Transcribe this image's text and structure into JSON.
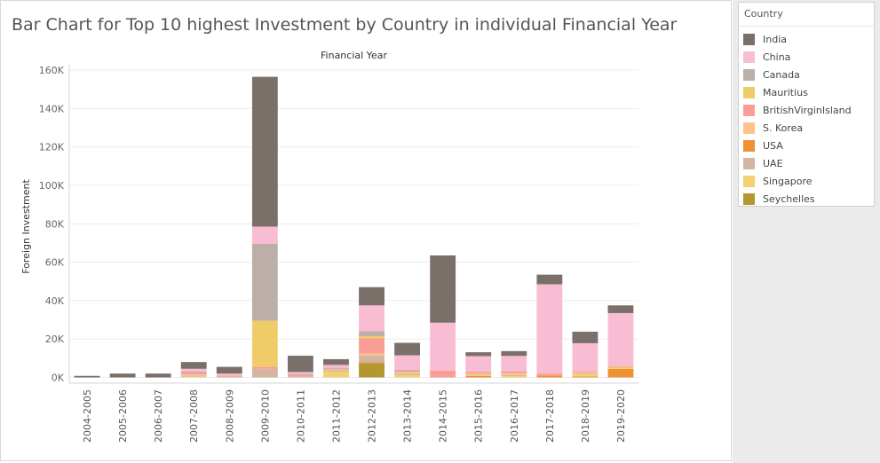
{
  "title": "Bar Chart for Top 10 highest Investment by Country in individual Financial Year",
  "legend": {
    "title": "Country",
    "items": [
      {
        "label": "India",
        "color": "#7b6f6a"
      },
      {
        "label": "China",
        "color": "#f9bdd3"
      },
      {
        "label": "Canada",
        "color": "#bbafa8"
      },
      {
        "label": "Mauritius",
        "color": "#f0cc69"
      },
      {
        "label": "BritishVirginIsland",
        "color": "#fa9e95"
      },
      {
        "label": "S. Korea",
        "color": "#fcc38a"
      },
      {
        "label": "USA",
        "color": "#ef9035"
      },
      {
        "label": "UAE",
        "color": "#d5b4a3"
      },
      {
        "label": "Singapore",
        "color": "#f2d26e"
      },
      {
        "label": "Seychelles",
        "color": "#b39832"
      }
    ]
  },
  "chart_data": {
    "type": "bar",
    "stacked": true,
    "title": "Bar Chart for Top 10 highest Investment by Country in individual Financial Year",
    "top_axis_label": "Financial Year",
    "ylabel": "Foreign Investment",
    "ylim": [
      -3000,
      160000
    ],
    "yticks": [
      0,
      20000,
      40000,
      60000,
      80000,
      100000,
      120000,
      140000,
      160000
    ],
    "ytick_labels": [
      "0K",
      "20K",
      "40K",
      "60K",
      "80K",
      "100K",
      "120K",
      "140K",
      "160K"
    ],
    "categories": [
      "2004-2005",
      "2005-2006",
      "2006-2007",
      "2007-2008",
      "2008-2009",
      "2009-2010",
      "2010-2011",
      "2011-2012",
      "2012-2013",
      "2013-2014",
      "2014-2015",
      "2015-2016",
      "2016-2017",
      "2017-2018",
      "2018-2019",
      "2019-2020"
    ],
    "series": [
      {
        "name": "Seychelles",
        "values": [
          0,
          0,
          0,
          0,
          0,
          0,
          0,
          0,
          7500,
          0,
          0,
          0,
          0,
          0,
          0,
          0
        ]
      },
      {
        "name": "USA",
        "values": [
          0,
          0,
          0,
          0,
          0,
          0,
          0,
          0,
          500,
          0,
          0,
          800,
          0,
          1000,
          500,
          4500
        ]
      },
      {
        "name": "Singapore",
        "values": [
          0,
          0,
          0,
          500,
          0,
          0,
          0,
          3000,
          0,
          1200,
          0,
          500,
          700,
          0,
          1000,
          500
        ]
      },
      {
        "name": "UAE",
        "values": [
          0,
          0,
          0,
          500,
          500,
          4500,
          500,
          500,
          3500,
          800,
          0,
          500,
          500,
          0,
          500,
          0
        ]
      },
      {
        "name": "S. Korea",
        "values": [
          0,
          0,
          0,
          500,
          0,
          0,
          0,
          500,
          1000,
          1000,
          0,
          500,
          1000,
          0,
          800,
          0
        ]
      },
      {
        "name": "BritishVirginIsland",
        "values": [
          0,
          0,
          0,
          1000,
          500,
          1000,
          800,
          500,
          8000,
          500,
          3500,
          800,
          1000,
          1000,
          500,
          500
        ]
      },
      {
        "name": "Mauritius",
        "values": [
          0,
          0,
          0,
          0,
          0,
          24000,
          0,
          0,
          1000,
          0,
          0,
          0,
          0,
          0,
          0,
          500
        ]
      },
      {
        "name": "Canada",
        "values": [
          0,
          0,
          0,
          500,
          0,
          40000,
          500,
          500,
          2500,
          500,
          0,
          0,
          0,
          0,
          0,
          0
        ]
      },
      {
        "name": "China",
        "values": [
          0,
          0,
          0,
          1500,
          1000,
          9000,
          1000,
          1500,
          13500,
          7500,
          25000,
          8000,
          8000,
          46500,
          14500,
          27500
        ]
      },
      {
        "name": "India",
        "values": [
          800,
          2000,
          2000,
          3500,
          3500,
          78000,
          8500,
          3000,
          9500,
          6500,
          35000,
          2000,
          2500,
          5000,
          6000,
          4000
        ]
      }
    ],
    "grid": true,
    "legend_position": "right"
  }
}
